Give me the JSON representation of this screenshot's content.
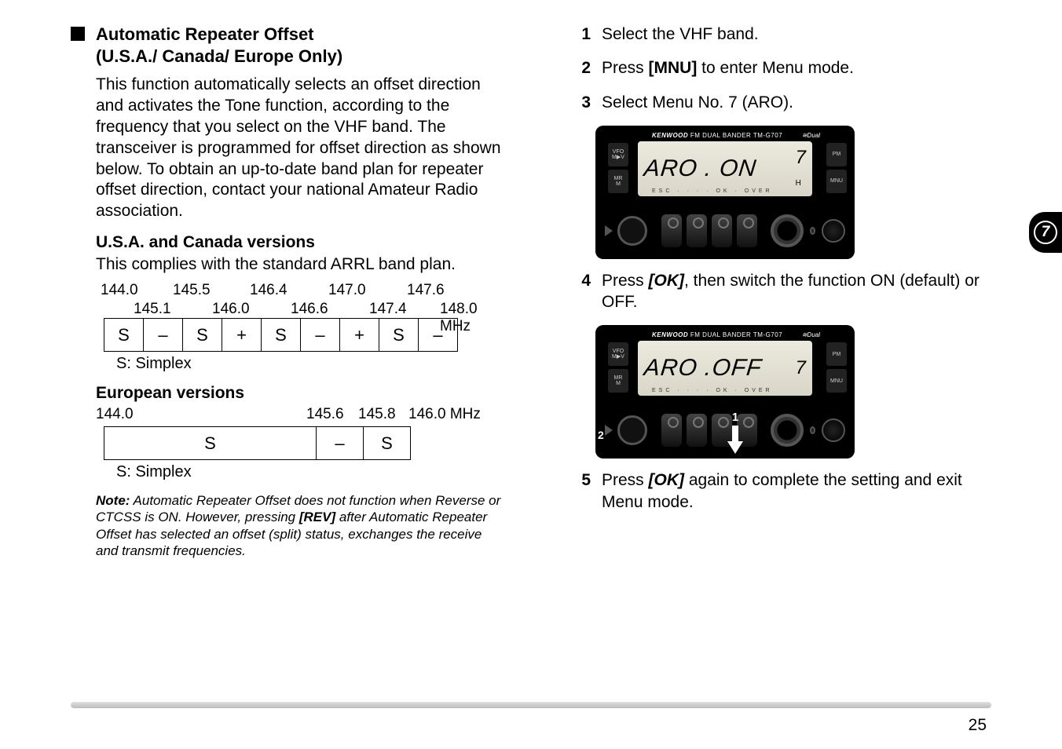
{
  "tab_number": "7",
  "left": {
    "heading_line1": "Automatic Repeater Offset",
    "heading_line2": "(U.S.A./ Canada/ Europe Only)",
    "intro": "This function automatically selects an offset direction and activates the Tone function, according to the frequency that you select on the VHF band.  The transceiver is programmed for offset direction as shown below.  To obtain an up-to-date band plan for repeater offset direction, contact your national Amateur Radio association.",
    "us_heading": "U.S.A. and Canada versions",
    "us_note": "This complies with the standard ARRL band plan.",
    "us_freqs_top": [
      "144.0",
      "145.5",
      "146.4",
      "147.0",
      "147.6"
    ],
    "us_freqs_bot": [
      "145.1",
      "146.0",
      "146.6",
      "147.4",
      "148.0 MHz"
    ],
    "us_cells": [
      "S",
      "–",
      "S",
      "+",
      "S",
      "–",
      "+",
      "S",
      "–"
    ],
    "us_cell_widths": [
      50,
      50,
      50,
      50,
      50,
      50,
      50,
      50,
      50
    ],
    "us_legend": "S:  Simplex",
    "eu_heading": "European versions",
    "eu_freqs": [
      "144.0",
      "145.6",
      "145.8",
      "146.0 MHz"
    ],
    "eu_cells": [
      "S",
      "–",
      "S"
    ],
    "eu_cell_widths": [
      270,
      60,
      60
    ],
    "eu_legend": "S:  Simplex",
    "note_label": "Note:",
    "note_body": "  Automatic Repeater Offset does not function when Reverse or CTCSS is ON.  However, pressing ",
    "note_key": "[REV]",
    "note_tail": " after Automatic Repeater Offset has selected an offset (split) status, exchanges the receive and transmit frequencies."
  },
  "right": {
    "steps": [
      {
        "n": "1",
        "pre": "Select the VHF band.",
        "b": "",
        "post": ""
      },
      {
        "n": "2",
        "pre": "Press ",
        "b": "[MNU]",
        "post": " to enter Menu mode."
      },
      {
        "n": "3",
        "pre": "Select Menu No. 7 (ARO).",
        "b": "",
        "post": ""
      },
      {
        "n": "4",
        "pre": "Press ",
        "bi": "[OK]",
        "post": ", then switch the function ON (default) or OFF."
      },
      {
        "n": "5",
        "pre": "Press ",
        "bi": "[OK]",
        "post": " again to complete the setting and exit Menu mode."
      }
    ],
    "radio1": {
      "brand": "KENWOOD",
      "model": " FM DUAL BANDER TM-G707",
      "dual": "≋Dual",
      "lcd": "ARO . ON",
      "lcd_right": "7",
      "h": "H",
      "btn_vfo": "VFO\nM▶V",
      "btn_mr": "MR\nM",
      "btn_pm": "PM",
      "btn_mnu": "MNU"
    },
    "radio2": {
      "brand": "KENWOOD",
      "model": " FM DUAL BANDER TM-G707",
      "dual": "≋Dual",
      "lcd": "ARO .OFF",
      "lcd_right": "7",
      "btn_vfo": "VFO\nM▶V",
      "btn_mr": "MR\nM",
      "btn_pm": "PM",
      "btn_mnu": "MNU",
      "callout1": "1",
      "callout2": "2"
    }
  },
  "page_number": "25",
  "colors": {
    "page_bg": "#ffffff",
    "text": "#000000",
    "radio_bg": "#000000",
    "lcd_bg": "#e3e0d2",
    "tab_bg": "#000000",
    "rule": "#cfcfcf"
  }
}
